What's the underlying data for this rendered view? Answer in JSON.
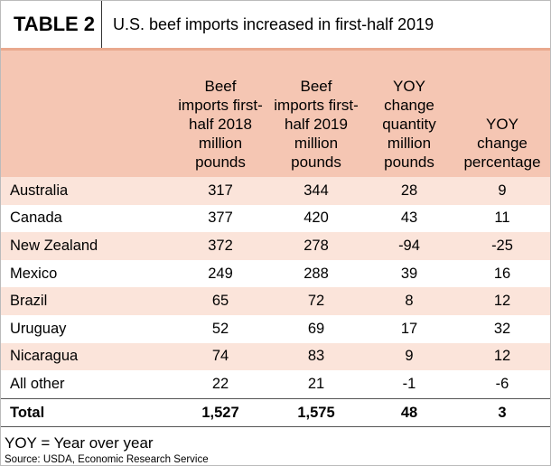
{
  "header": {
    "label": "TABLE 2",
    "title": "U.S. beef imports increased in first-half 2019"
  },
  "table": {
    "columns": [
      "",
      "Beef imports first-half 2018 million pounds",
      "Beef imports first-half 2019 million pounds",
      "YOY change quantity million pounds",
      "YOY change percentage"
    ],
    "rows": [
      [
        "Australia",
        317,
        344,
        28,
        9
      ],
      [
        "Canada",
        377,
        420,
        43,
        11
      ],
      [
        "New Zealand",
        372,
        278,
        -94,
        -25
      ],
      [
        "Mexico",
        249,
        288,
        39,
        16
      ],
      [
        "Brazil",
        65,
        72,
        8,
        12
      ],
      [
        "Uruguay",
        52,
        69,
        17,
        32
      ],
      [
        "Nicaragua",
        74,
        83,
        9,
        12
      ],
      [
        "All other",
        22,
        21,
        -1,
        -6
      ]
    ],
    "total": [
      "Total",
      "1,527",
      "1,575",
      48,
      3
    ]
  },
  "footnote": "YOY = Year over year",
  "source": "Source: USDA, Economic Research Service"
}
